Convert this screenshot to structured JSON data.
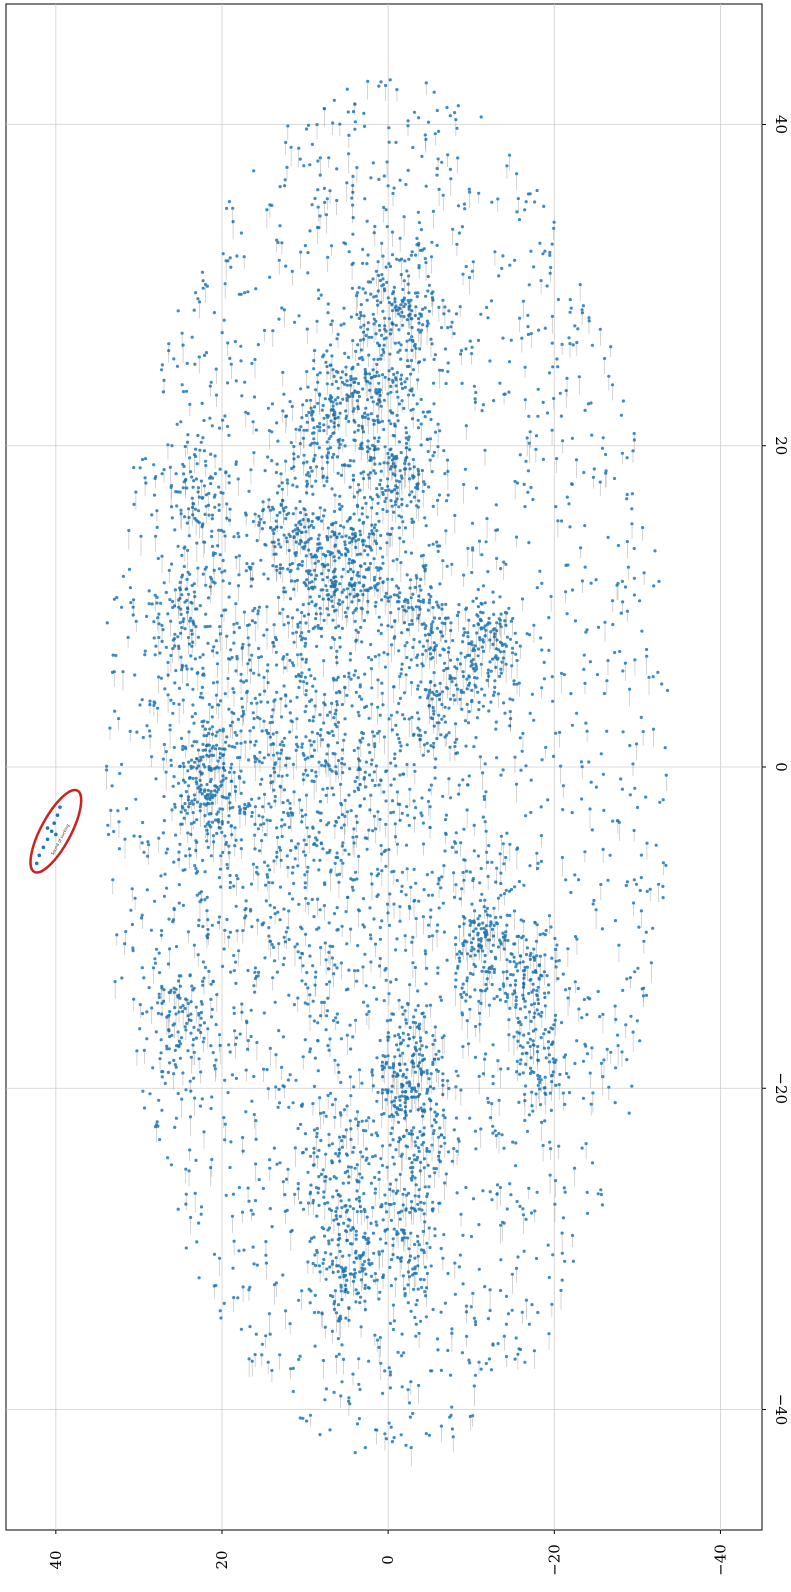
{
  "chart_data": {
    "type": "scatter",
    "title": "",
    "xlabel": "",
    "ylabel": "",
    "orientation": "rotated-90",
    "xlim": [
      -47.5,
      47.5
    ],
    "ylim": [
      -45,
      46
    ],
    "x_ticks": [
      -40,
      -20,
      0,
      20,
      40
    ],
    "x_tick_labels": [
      "−40",
      "−20",
      "0",
      "20",
      "40"
    ],
    "y_ticks": [
      -40,
      -20,
      0,
      20,
      40
    ],
    "y_tick_labels": [
      "−40",
      "−20",
      "0",
      "20",
      "40"
    ],
    "grid": true,
    "marker_color": "#1f77b4",
    "label_color": "#222222",
    "annotation": {
      "shape": "ellipse",
      "color": "#cc2222",
      "center": [
        -4,
        40
      ],
      "note": "highlighted cluster"
    },
    "highlighted_label": "Sound of sucking",
    "clusters": [
      {
        "x": 0,
        "y": 10,
        "sx": 9,
        "sy": 8,
        "n": 900
      },
      {
        "x": 28,
        "y": -1,
        "sx": 2.5,
        "sy": 3,
        "n": 220
      },
      {
        "x": 19,
        "y": -1,
        "sx": 2.5,
        "sy": 2.5,
        "n": 180
      },
      {
        "x": 13,
        "y": 3,
        "sx": 2,
        "sy": 2,
        "n": 120
      },
      {
        "x": 12,
        "y": 7,
        "sx": 2,
        "sy": 2,
        "n": 120
      },
      {
        "x": 15,
        "y": 12,
        "sx": 2,
        "sy": 2,
        "n": 110
      },
      {
        "x": 23,
        "y": 4,
        "sx": 2,
        "sy": 2,
        "n": 110
      },
      {
        "x": 9,
        "y": -4,
        "sx": 2,
        "sy": 2,
        "n": 100
      },
      {
        "x": 4,
        "y": -6,
        "sx": 2,
        "sy": 2,
        "n": 100
      },
      {
        "x": 7,
        "y": -12,
        "sx": 2,
        "sy": 2,
        "n": 140
      },
      {
        "x": -10,
        "y": -11,
        "sx": 2.5,
        "sy": 2.5,
        "n": 160
      },
      {
        "x": -13,
        "y": -17,
        "sx": 2,
        "sy": 2,
        "n": 110
      },
      {
        "x": -18,
        "y": -18,
        "sx": 2,
        "sy": 2,
        "n": 100
      },
      {
        "x": -20,
        "y": -2,
        "sx": 2,
        "sy": 2,
        "n": 100
      },
      {
        "x": -24,
        "y": -4,
        "sx": 2,
        "sy": 2,
        "n": 100
      },
      {
        "x": -26,
        "y": 6,
        "sx": 2.5,
        "sy": 2.5,
        "n": 150
      },
      {
        "x": -30,
        "y": -2,
        "sx": 2,
        "sy": 2,
        "n": 100
      },
      {
        "x": -31,
        "y": 5,
        "sx": 2,
        "sy": 2,
        "n": 100
      },
      {
        "x": -2,
        "y": 22,
        "sx": 2,
        "sy": 2,
        "n": 110
      },
      {
        "x": -16,
        "y": 25,
        "sx": 2,
        "sy": 2,
        "n": 90
      },
      {
        "x": 16,
        "y": 22,
        "sx": 2,
        "sy": 2,
        "n": 90
      },
      {
        "x": 9,
        "y": 25,
        "sx": 2,
        "sy": 2,
        "n": 90
      },
      {
        "x": 21,
        "y": 8,
        "sx": 2,
        "sy": 2,
        "n": 90
      },
      {
        "x": 1,
        "y": 21,
        "sx": 2,
        "sy": 2,
        "n": 90
      },
      {
        "x": -18,
        "y": -3,
        "sx": 2,
        "sy": 2,
        "n": 90
      }
    ],
    "background_points": 2300,
    "ellipse_extent": {
      "x_half": 43,
      "y_half": 34
    },
    "highlight_points": [
      {
        "x": -4.5,
        "y": 41
      },
      {
        "x": -4,
        "y": 40.5
      },
      {
        "x": -3.5,
        "y": 40.2
      },
      {
        "x": -5,
        "y": 41.5
      },
      {
        "x": -3,
        "y": 39.8
      },
      {
        "x": -5.5,
        "y": 42
      },
      {
        "x": -2.5,
        "y": 39.5
      },
      {
        "x": -4.2,
        "y": 40
      },
      {
        "x": -3.8,
        "y": 41
      },
      {
        "x": -6,
        "y": 42.3
      }
    ]
  }
}
